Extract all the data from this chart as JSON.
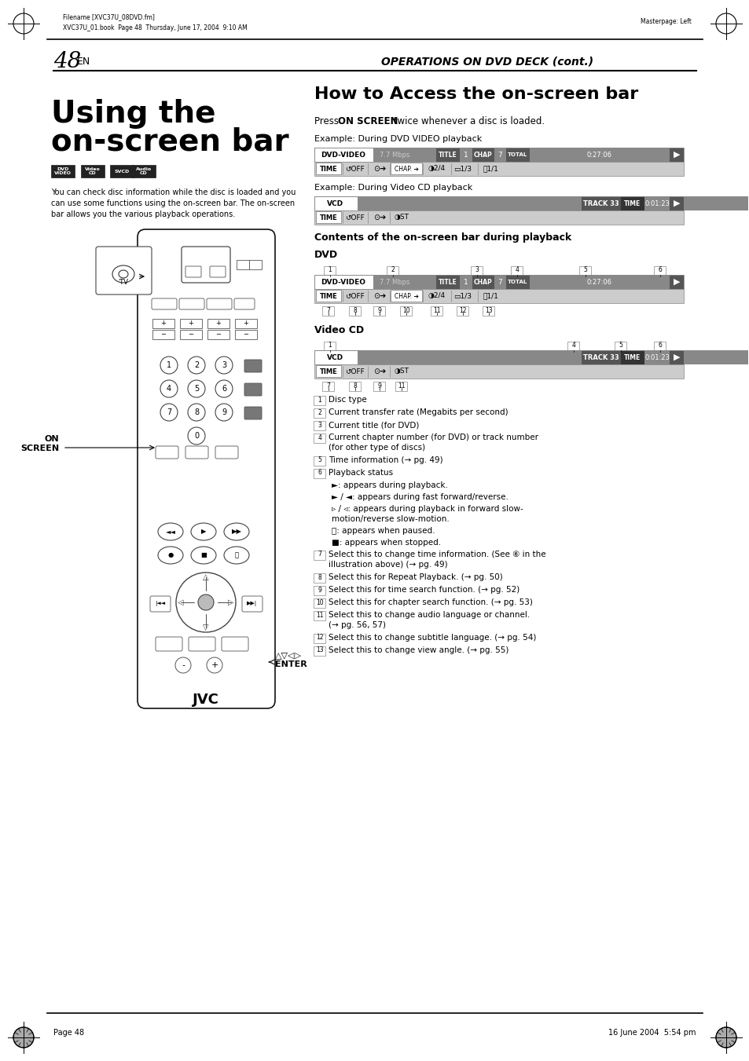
{
  "page_number": "48",
  "header_left": "Filename [XVC37U_08DVD.fm]",
  "header_left2": "XVC37U_01.book  Page 48  Thursday, June 17, 2004  9:10 AM",
  "header_right": "Masterpage: Left",
  "footer_left": "Page 48",
  "footer_right": "16 June 2004  5:54 pm",
  "section_header": "OPERATIONS ON DVD DECK (cont.)",
  "section_title": "How to Access the on-screen bar",
  "bg_color": "#ffffff"
}
